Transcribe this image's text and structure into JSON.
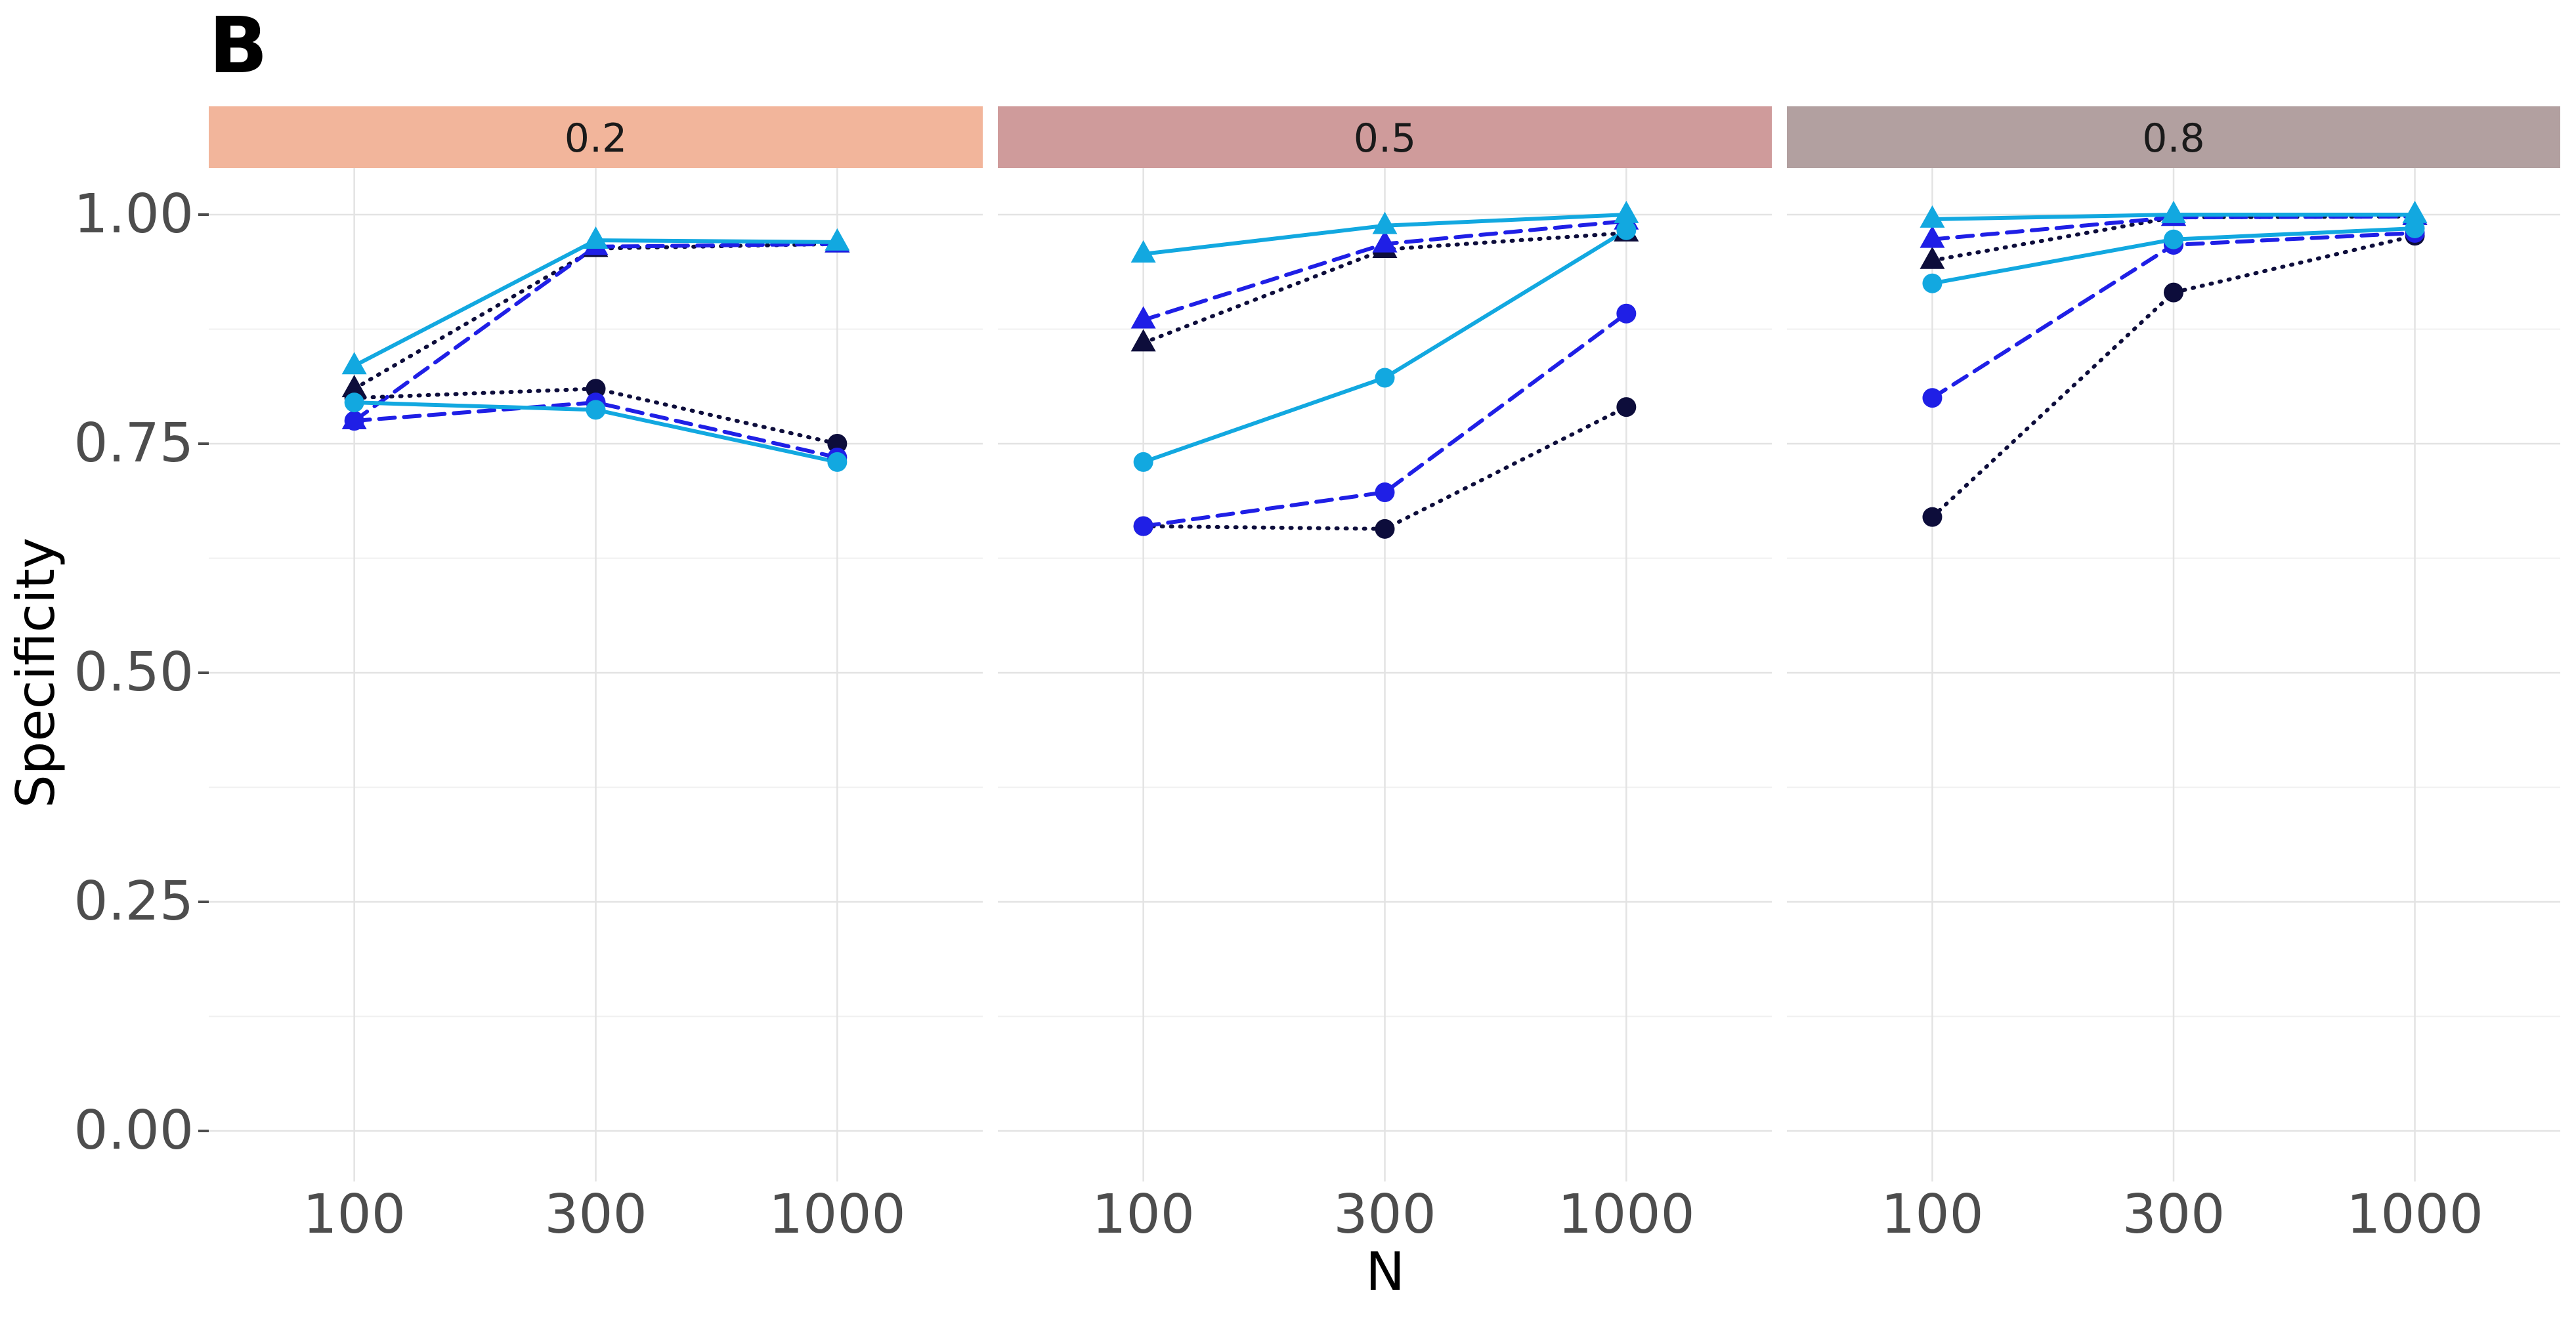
{
  "chart_data": {
    "type": "line",
    "panel_label": "B",
    "xlabel": "N",
    "ylabel": "Specificity",
    "ylim": [
      0,
      1.1
    ],
    "yticks": [
      "0.00",
      "0.25",
      "0.50",
      "0.75",
      "1.00"
    ],
    "categories": [
      "100",
      "300",
      "1000"
    ],
    "grid": true,
    "legend": "none",
    "style": {
      "colors": {
        "black": "#0d0d3b",
        "blue": "#1f1fe6",
        "cyan": "#12a8e0"
      },
      "line_types": {
        "black": "dotted",
        "blue": "dashed",
        "cyan": "solid"
      }
    },
    "panels": [
      {
        "label": "0.2",
        "strip_color": "#f2b59b",
        "series": [
          {
            "color_key": "black",
            "marker": "triangle",
            "values": [
              0.81,
              0.963,
              0.968
            ]
          },
          {
            "color_key": "blue",
            "marker": "triangle",
            "values": [
              0.775,
              0.965,
              0.968
            ]
          },
          {
            "color_key": "cyan",
            "marker": "triangle",
            "values": [
              0.835,
              0.972,
              0.97
            ]
          },
          {
            "color_key": "black",
            "marker": "circle",
            "values": [
              0.8,
              0.81,
              0.75
            ]
          },
          {
            "color_key": "blue",
            "marker": "circle",
            "values": [
              0.775,
              0.795,
              0.735
            ]
          },
          {
            "color_key": "cyan",
            "marker": "circle",
            "values": [
              0.795,
              0.787,
              0.73
            ]
          }
        ]
      },
      {
        "label": "0.5",
        "strip_color": "#cf9b9b",
        "series": [
          {
            "color_key": "black",
            "marker": "triangle",
            "values": [
              0.86,
              0.962,
              0.98
            ]
          },
          {
            "color_key": "blue",
            "marker": "triangle",
            "values": [
              0.885,
              0.968,
              0.993
            ]
          },
          {
            "color_key": "cyan",
            "marker": "triangle",
            "values": [
              0.957,
              0.988,
              1.0
            ]
          },
          {
            "color_key": "black",
            "marker": "circle",
            "values": [
              0.66,
              0.657,
              0.79
            ]
          },
          {
            "color_key": "blue",
            "marker": "circle",
            "values": [
              0.66,
              0.697,
              0.892
            ]
          },
          {
            "color_key": "cyan",
            "marker": "circle",
            "values": [
              0.73,
              0.822,
              0.983
            ]
          }
        ]
      },
      {
        "label": "0.8",
        "strip_color": "#b2a0a0",
        "series": [
          {
            "color_key": "black",
            "marker": "triangle",
            "values": [
              0.95,
              0.997,
              0.998
            ]
          },
          {
            "color_key": "blue",
            "marker": "triangle",
            "values": [
              0.973,
              0.997,
              0.998
            ]
          },
          {
            "color_key": "cyan",
            "marker": "triangle",
            "values": [
              0.995,
              1.0,
              1.0
            ]
          },
          {
            "color_key": "black",
            "marker": "circle",
            "values": [
              0.67,
              0.915,
              0.977
            ]
          },
          {
            "color_key": "blue",
            "marker": "circle",
            "values": [
              0.8,
              0.967,
              0.98
            ]
          },
          {
            "color_key": "cyan",
            "marker": "circle",
            "values": [
              0.925,
              0.973,
              0.985
            ]
          }
        ]
      }
    ]
  }
}
